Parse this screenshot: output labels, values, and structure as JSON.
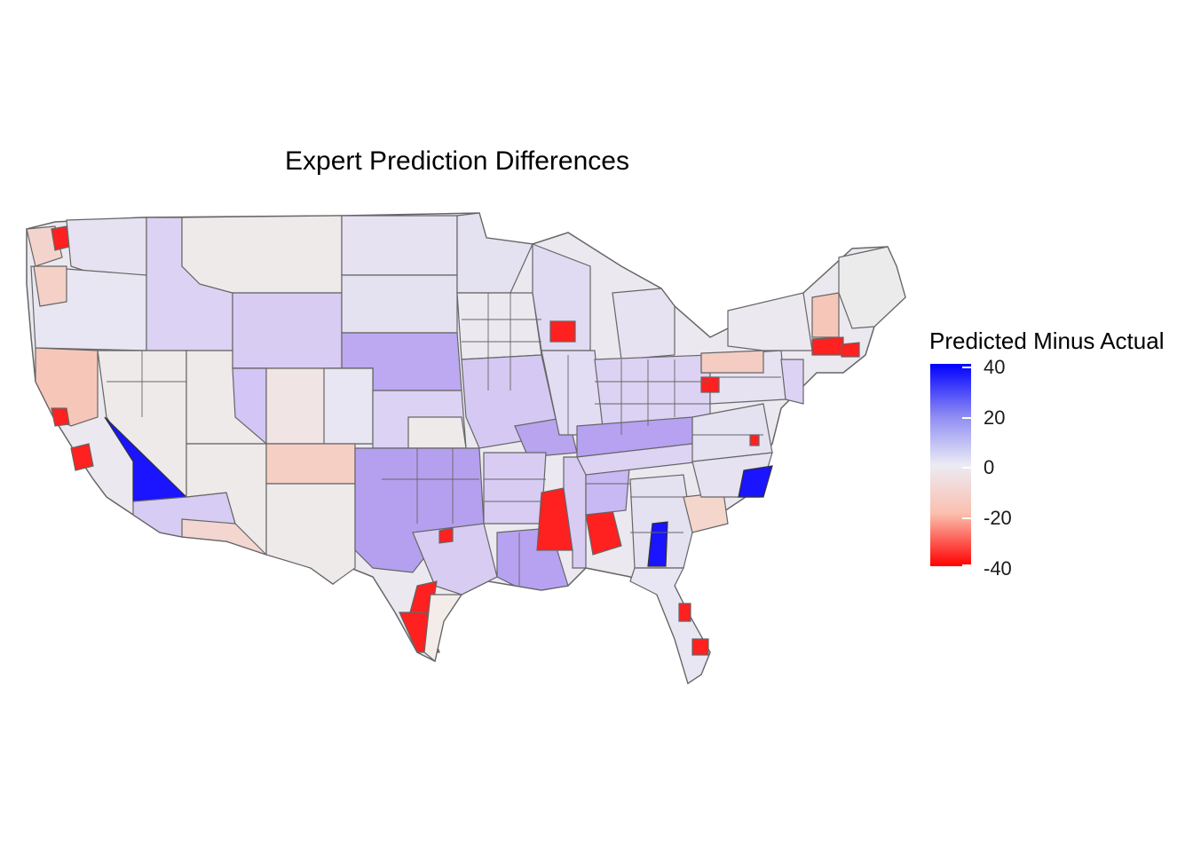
{
  "title": "Expert Prediction Differences",
  "legend": {
    "title": "Predicted Minus Actual",
    "ticks": [
      "40",
      "20",
      "0",
      "-20",
      "-40"
    ],
    "scale": {
      "min": -40,
      "max": 40,
      "low_color": "#ff0000",
      "mid_color": "#ebebf5",
      "high_color": "#0000ff"
    }
  },
  "colors": {
    "border": "#666666",
    "strong_red": "#ff2020",
    "strong_blue": "#1a14ff",
    "light_purple": "#d8cdf2",
    "mid_purple": "#b9a6f0",
    "neutral": "#ebe9ef",
    "light_red": "#f6c8bc",
    "pale_red": "#f0e4e4"
  }
}
